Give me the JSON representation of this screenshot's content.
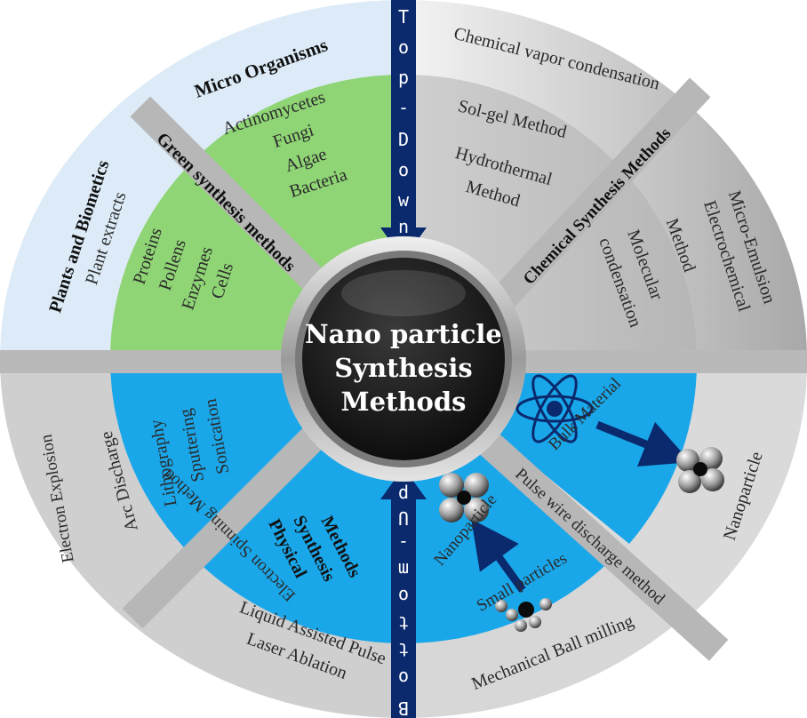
{
  "center": {
    "line1": "Nano particle",
    "line2": "Synthesis",
    "line3": "Methods"
  },
  "arrows": {
    "top_letters": [
      "T",
      "o",
      "p",
      "-",
      "D",
      "o",
      "w",
      "n"
    ],
    "bottom_letters": [
      "B",
      "o",
      "t",
      "t",
      "o",
      "m",
      "-",
      "U",
      "p"
    ]
  },
  "green": {
    "band_title": "Green synthesis methods",
    "micro_title": "Micro Organisms",
    "micro_items": [
      "Actinomycetes",
      "Fungi",
      "Algae",
      "Bacteria"
    ],
    "plants_title": "Plants and Biometics",
    "plants_sub": "Plant extracts",
    "plants_items": [
      "Proteins",
      "Pollens",
      "Enzymes",
      "Cells"
    ]
  },
  "chemical": {
    "band_title": "Chemical Synthesis Methods",
    "items_top": [
      "Chemical vapor condensation",
      "Sol-gel Method",
      "Hydrothermal",
      "Method"
    ],
    "items_right": [
      "Micro-Emulsion",
      "Electrochemical",
      "Method",
      "Molecular",
      "condensation"
    ]
  },
  "physical": {
    "title_lines": [
      "Physical",
      "Synthesis",
      "Methods"
    ],
    "band_left": "Electron Spinning Method",
    "band_right": "Pulse wire discharge method",
    "left_items": [
      "Arc Discharge",
      "Lithography",
      "Sputtering",
      "Sonication"
    ],
    "outer_left": "Electron Explosion",
    "bottom_lines": [
      "Liquid Assisted Pulse",
      "Laser Ablation"
    ],
    "bottom_right": "Mechanical Ball milling",
    "bulk_label": "Bulk Material",
    "nano_label": "Nanoparticle",
    "nanoparticle_small": "Nanoparticle",
    "small_particles": "Small particles"
  },
  "colors": {
    "green": "#8fd475",
    "blue": "#1aa7ea",
    "pale_blue": "#dcebf7",
    "grey_dark": "#9a9a9a",
    "grey_light": "#d8d8d8",
    "arrow": "#0b2a6e",
    "band": "#b5b5b5"
  }
}
